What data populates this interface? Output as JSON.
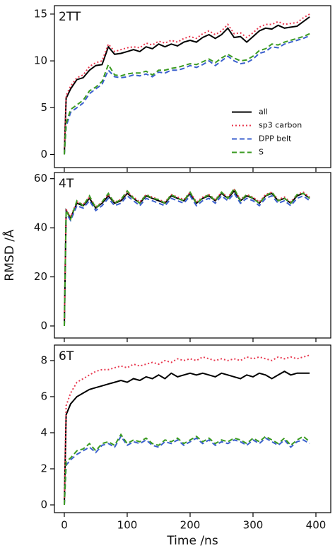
{
  "chart_data": [
    {
      "type": "line",
      "label": "2TT",
      "x": [
        0,
        3,
        10,
        20,
        30,
        40,
        50,
        60,
        70,
        80,
        90,
        100,
        110,
        120,
        130,
        140,
        150,
        160,
        170,
        180,
        190,
        200,
        210,
        220,
        230,
        240,
        250,
        260,
        270,
        280,
        290,
        300,
        310,
        320,
        330,
        340,
        350,
        360,
        370,
        380,
        390
      ],
      "xlim": [
        -15.7,
        423.6
      ],
      "xticks": [
        0,
        100,
        200,
        300,
        400
      ],
      "show_xticklabels": false,
      "ylim": [
        -1.4,
        15.9
      ],
      "yticks": [
        0,
        5,
        10,
        15
      ],
      "legend": "lower right",
      "series": [
        {
          "name": "all",
          "color": "#000000",
          "linestyle": "solid",
          "values": [
            0,
            6,
            7,
            8,
            8.2,
            9,
            9.5,
            9.6,
            11.5,
            10.7,
            10.8,
            11,
            11.2,
            11,
            11.5,
            11.3,
            11.8,
            11.5,
            11.8,
            11.6,
            12,
            12.2,
            12,
            12.5,
            12.8,
            12.4,
            12.8,
            13.5,
            12.5,
            12.6,
            12,
            12.6,
            13.2,
            13.5,
            13.4,
            13.8,
            13.5,
            13.6,
            13.7,
            14.2,
            14.7
          ]
        },
        {
          "name": "sp3 carbon",
          "color": "#e8384f",
          "linestyle": "dotted",
          "values": [
            0,
            6.3,
            7.3,
            8.2,
            8.5,
            9.4,
            9.8,
            10,
            11.8,
            11,
            11.2,
            11.4,
            11.5,
            11.4,
            11.9,
            11.7,
            12.1,
            11.9,
            12.2,
            12,
            12.4,
            12.6,
            12.4,
            12.9,
            13.2,
            12.8,
            13.2,
            13.9,
            12.9,
            13,
            12.5,
            13,
            13.6,
            13.9,
            13.9,
            14.2,
            13.9,
            14,
            14.1,
            14.6,
            15
          ]
        },
        {
          "name": "DPP belt",
          "color": "#3a5fcd",
          "linestyle": "dashed",
          "values": [
            0,
            3,
            4.5,
            5,
            5.5,
            6.5,
            7,
            7.5,
            9,
            8.3,
            8.2,
            8.3,
            8.5,
            8.4,
            8.6,
            8.3,
            8.8,
            8.7,
            9,
            9,
            9.2,
            9.5,
            9.3,
            9.6,
            10,
            9.5,
            10,
            10.5,
            10,
            9.7,
            9.8,
            10.2,
            10.8,
            11,
            11.5,
            11.4,
            11.8,
            12,
            12.2,
            12.4,
            12.7
          ]
        },
        {
          "name": "S",
          "color": "#3a9a20",
          "linestyle": "dashed",
          "values": [
            0,
            3.3,
            4.8,
            5.3,
            5.8,
            6.8,
            7.2,
            7.8,
            9.6,
            8.5,
            8.4,
            8.6,
            8.7,
            8.7,
            8.9,
            8.5,
            9,
            9,
            9.2,
            9.3,
            9.5,
            9.7,
            9.6,
            9.9,
            10.2,
            9.8,
            10.3,
            10.7,
            10.3,
            10,
            10.1,
            10.5,
            11.1,
            11.3,
            11.8,
            11.7,
            12,
            12.2,
            12.4,
            12.6,
            12.9
          ]
        }
      ]
    },
    {
      "type": "line",
      "label": "4T",
      "ylabel": "RMSD /Å",
      "x": [
        0,
        3,
        10,
        20,
        30,
        40,
        50,
        60,
        70,
        80,
        90,
        100,
        110,
        120,
        130,
        140,
        150,
        160,
        170,
        180,
        190,
        200,
        210,
        220,
        230,
        240,
        250,
        260,
        270,
        280,
        290,
        300,
        310,
        320,
        330,
        340,
        350,
        360,
        370,
        380,
        390
      ],
      "xlim": [
        -15.7,
        423.6
      ],
      "xticks": [
        0,
        100,
        200,
        300,
        400
      ],
      "show_xticklabels": false,
      "ylim": [
        -4.9,
        62.5
      ],
      "yticks": [
        0,
        20,
        40,
        60
      ],
      "series": [
        {
          "color": "#000000",
          "linestyle": "solid",
          "values": [
            0,
            47,
            44,
            50,
            49,
            52,
            48,
            50,
            53,
            50,
            51,
            54,
            52,
            50,
            53,
            52,
            51,
            50,
            53,
            52,
            51,
            54,
            50,
            52,
            53,
            51,
            54,
            52,
            55,
            51,
            53,
            52,
            50,
            53,
            54,
            51,
            52,
            50,
            53,
            54,
            52
          ]
        },
        {
          "color": "#e8384f",
          "linestyle": "dotted",
          "values": [
            0,
            47.5,
            44.5,
            50.5,
            49.5,
            52.5,
            48.5,
            50.5,
            53.5,
            50.5,
            51.5,
            54.5,
            52.5,
            50.5,
            53.5,
            52.5,
            51.5,
            50.5,
            53.5,
            52.5,
            51.5,
            54.5,
            50.5,
            52.5,
            53.5,
            51.5,
            54.5,
            52.5,
            55.5,
            51.5,
            53.5,
            52.5,
            50.5,
            53.5,
            54.5,
            51.5,
            52.5,
            50.5,
            53.5,
            54.5,
            52.5
          ]
        },
        {
          "color": "#3a5fcd",
          "linestyle": "dashed",
          "values": [
            0,
            46,
            43,
            49,
            48,
            51,
            47,
            49,
            52,
            49,
            50,
            53,
            51,
            49,
            52,
            51,
            50,
            49,
            52,
            51,
            50,
            53,
            49,
            51,
            52,
            50,
            53,
            51,
            54,
            50,
            52,
            51,
            49,
            52,
            53,
            50,
            51,
            49,
            52,
            53,
            51
          ]
        },
        {
          "color": "#3a9a20",
          "linestyle": "dashed",
          "values": [
            0,
            47,
            43.5,
            51,
            49,
            53,
            48,
            50.5,
            54,
            50,
            51.5,
            55,
            52,
            50,
            53.5,
            52,
            51.5,
            50,
            53.5,
            52,
            51,
            54.5,
            50,
            52,
            53.5,
            51,
            54.5,
            52,
            56,
            51,
            53.5,
            52,
            50,
            53,
            54.5,
            51,
            52,
            50,
            53.5,
            54,
            52
          ]
        }
      ]
    },
    {
      "type": "line",
      "label": "6T",
      "xlabel": "Time /ns",
      "x": [
        0,
        3,
        10,
        20,
        30,
        40,
        50,
        60,
        70,
        80,
        90,
        100,
        110,
        120,
        130,
        140,
        150,
        160,
        170,
        180,
        190,
        200,
        210,
        220,
        230,
        240,
        250,
        260,
        270,
        280,
        290,
        300,
        310,
        320,
        330,
        340,
        350,
        360,
        370,
        380,
        390
      ],
      "xlim": [
        -15.7,
        423.6
      ],
      "xticks": [
        0,
        100,
        200,
        300,
        400
      ],
      "show_xticklabels": true,
      "ylim": [
        -0.43,
        8.86
      ],
      "yticks": [
        0,
        2,
        4,
        6,
        8
      ],
      "series": [
        {
          "color": "#000000",
          "linestyle": "solid",
          "values": [
            0,
            5,
            5.6,
            6,
            6.2,
            6.4,
            6.5,
            6.6,
            6.7,
            6.8,
            6.9,
            6.8,
            7,
            6.9,
            7.1,
            7,
            7.2,
            7,
            7.3,
            7.1,
            7.2,
            7.3,
            7.2,
            7.3,
            7.2,
            7.1,
            7.3,
            7.2,
            7.1,
            7.0,
            7.2,
            7.1,
            7.3,
            7.2,
            7.0,
            7.2,
            7.4,
            7.2,
            7.3,
            7.3,
            7.3
          ]
        },
        {
          "color": "#e8384f",
          "linestyle": "dotted",
          "values": [
            0,
            5.5,
            6.2,
            6.8,
            7,
            7.2,
            7.4,
            7.5,
            7.5,
            7.6,
            7.7,
            7.6,
            7.8,
            7.7,
            7.8,
            7.9,
            7.8,
            8,
            7.9,
            8.1,
            8,
            8.1,
            8,
            8.2,
            8.1,
            8,
            8.1,
            8,
            8.1,
            8,
            8.2,
            8.1,
            8.2,
            8.1,
            8,
            8.2,
            8.1,
            8.2,
            8.1,
            8.2,
            8.3
          ]
        },
        {
          "color": "#3a5fcd",
          "linestyle": "dashed",
          "values": [
            0,
            2.2,
            2.5,
            2.8,
            3,
            3.2,
            2.9,
            3.3,
            3.4,
            3.2,
            3.8,
            3.3,
            3.5,
            3.4,
            3.6,
            3.3,
            3.2,
            3.5,
            3.4,
            3.6,
            3.3,
            3.5,
            3.7,
            3.4,
            3.6,
            3.3,
            3.5,
            3.4,
            3.6,
            3.5,
            3.3,
            3.6,
            3.4,
            3.7,
            3.5,
            3.3,
            3.6,
            3.2,
            3.5,
            3.6,
            3.4
          ]
        },
        {
          "color": "#3a9a20",
          "linestyle": "dashed",
          "values": [
            0,
            2.4,
            2.6,
            3,
            3.1,
            3.4,
            3,
            3.4,
            3.5,
            3.3,
            3.9,
            3.4,
            3.6,
            3.5,
            3.7,
            3.4,
            3.3,
            3.6,
            3.5,
            3.7,
            3.4,
            3.6,
            3.8,
            3.5,
            3.7,
            3.4,
            3.6,
            3.5,
            3.7,
            3.6,
            3.4,
            3.7,
            3.5,
            3.8,
            3.6,
            3.4,
            3.7,
            3.3,
            3.6,
            3.8,
            3.5
          ]
        }
      ]
    }
  ]
}
